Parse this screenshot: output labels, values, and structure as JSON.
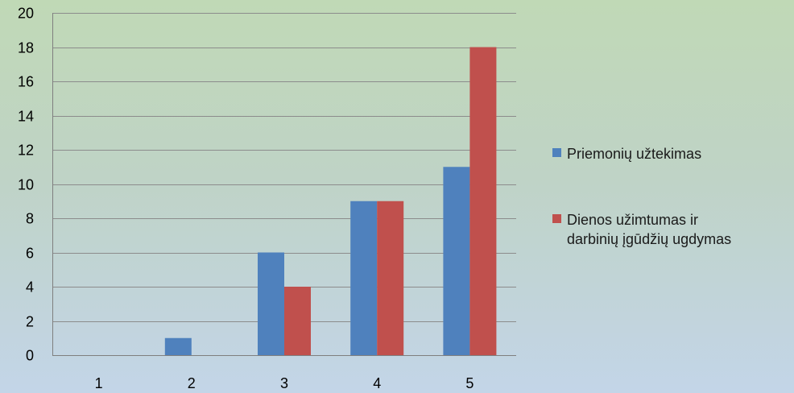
{
  "chart_data": {
    "type": "bar",
    "categories": [
      "1",
      "2",
      "3",
      "4",
      "5"
    ],
    "series": [
      {
        "name": "Priemonių užtekimas",
        "values": [
          0,
          1,
          6,
          9,
          11
        ],
        "color": "#4f81bd"
      },
      {
        "name": "Dienos užimtumas ir darbinių įgūdžių ugdymas",
        "name_lines": [
          "Dienos užimtumas ir",
          "darbinių įgūdžių ugdymas"
        ],
        "values": [
          0,
          0,
          4,
          9,
          18
        ],
        "color": "#c0504d"
      }
    ],
    "ylim": [
      0,
      20
    ],
    "yticks": [
      0,
      2,
      4,
      6,
      8,
      10,
      12,
      14,
      16,
      18,
      20
    ],
    "grid": true,
    "legend": "right",
    "title": "",
    "xlabel": "",
    "ylabel": ""
  }
}
